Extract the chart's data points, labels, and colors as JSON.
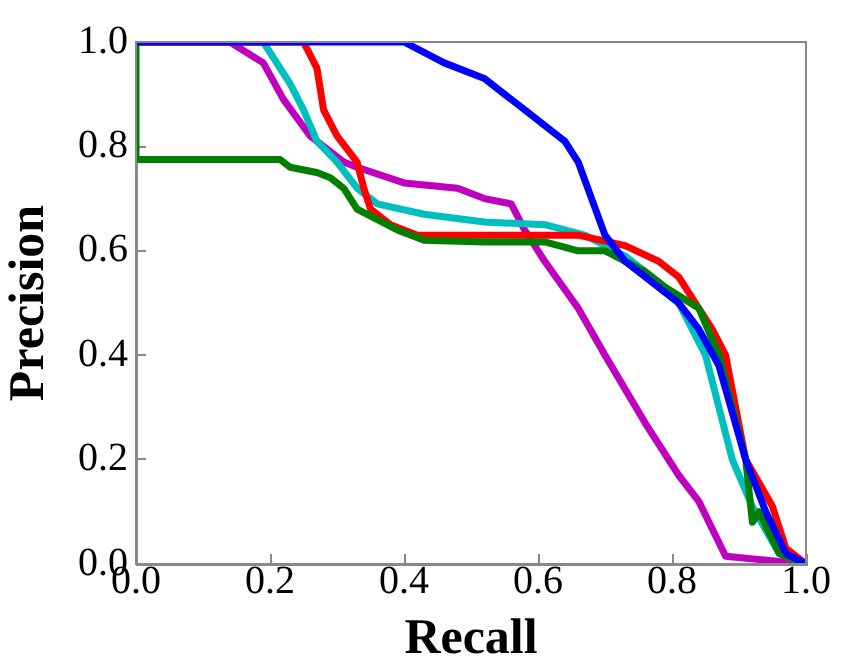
{
  "chart_data": {
    "type": "line",
    "xlabel": "Recall",
    "ylabel": "Precision",
    "xlim": [
      0,
      1
    ],
    "ylim": [
      0,
      1
    ],
    "xticks": [
      {
        "value": 0,
        "label": "0.0"
      },
      0.2,
      0.4,
      0.6,
      0.8,
      {
        "value": 1,
        "label": "1.0"
      }
    ],
    "yticks": [
      {
        "value": 0,
        "label": "0.0"
      },
      0.2,
      0.4,
      0.6,
      0.8,
      {
        "value": 1,
        "label": "1.0"
      }
    ],
    "grid": false,
    "legend": false,
    "marker": "none",
    "line_style": "solid",
    "series": [
      {
        "color": "#0000ff",
        "x": [
          0,
          0.4,
          0.46,
          0.52,
          0.58,
          0.64,
          0.66,
          0.68,
          0.7,
          0.73,
          0.81,
          0.84,
          0.87,
          0.91,
          0.94,
          0.97,
          1
        ],
        "values": [
          1,
          1,
          0.96,
          0.93,
          0.87,
          0.81,
          0.77,
          0.7,
          0.63,
          0.58,
          0.5,
          0.45,
          0.38,
          0.2,
          0.1,
          0.02,
          0
        ]
      },
      {
        "color": "#008000",
        "x": [
          0,
          0,
          0.215,
          0.23,
          0.27,
          0.29,
          0.31,
          0.33,
          0.39,
          0.43,
          0.52,
          0.61,
          0.66,
          0.7,
          0.76,
          0.79,
          0.84,
          0.87,
          0.91,
          0.92,
          0.93,
          0.96,
          1
        ],
        "values": [
          1,
          0.775,
          0.775,
          0.76,
          0.75,
          0.74,
          0.72,
          0.68,
          0.64,
          0.62,
          0.617,
          0.617,
          0.6,
          0.6,
          0.56,
          0.53,
          0.49,
          0.4,
          0.2,
          0.08,
          0.1,
          0.02,
          0
        ]
      },
      {
        "color": "#ff0000",
        "x": [
          0,
          0.25,
          0.27,
          0.28,
          0.3,
          0.33,
          0.34,
          0.35,
          0.38,
          0.42,
          0.52,
          0.66,
          0.73,
          0.78,
          0.81,
          0.83,
          0.86,
          0.88,
          0.91,
          0.95,
          0.97,
          1
        ],
        "values": [
          1,
          1,
          0.95,
          0.87,
          0.82,
          0.77,
          0.72,
          0.68,
          0.65,
          0.63,
          0.63,
          0.63,
          0.61,
          0.58,
          0.55,
          0.51,
          0.45,
          0.4,
          0.2,
          0.11,
          0.03,
          0
        ]
      },
      {
        "color": "#00bfbf",
        "x": [
          0,
          0.19,
          0.2,
          0.23,
          0.25,
          0.27,
          0.3,
          0.33,
          0.36,
          0.43,
          0.52,
          0.61,
          0.67,
          0.73,
          0.78,
          0.81,
          0.85,
          0.89,
          0.92,
          0.96,
          1
        ],
        "values": [
          1,
          1,
          0.98,
          0.92,
          0.87,
          0.81,
          0.77,
          0.72,
          0.69,
          0.67,
          0.655,
          0.65,
          0.63,
          0.59,
          0.54,
          0.5,
          0.4,
          0.2,
          0.11,
          0.02,
          0
        ]
      },
      {
        "color": "#bf00bf",
        "x": [
          0,
          0.14,
          0.19,
          0.22,
          0.26,
          0.31,
          0.33,
          0.4,
          0.48,
          0.52,
          0.56,
          0.58,
          0.61,
          0.66,
          0.7,
          0.76,
          0.81,
          0.84,
          0.88,
          1
        ],
        "values": [
          1,
          1,
          0.96,
          0.89,
          0.82,
          0.77,
          0.76,
          0.73,
          0.72,
          0.7,
          0.69,
          0.64,
          0.58,
          0.49,
          0.4,
          0.27,
          0.17,
          0.12,
          0.015,
          0
        ]
      }
    ]
  }
}
